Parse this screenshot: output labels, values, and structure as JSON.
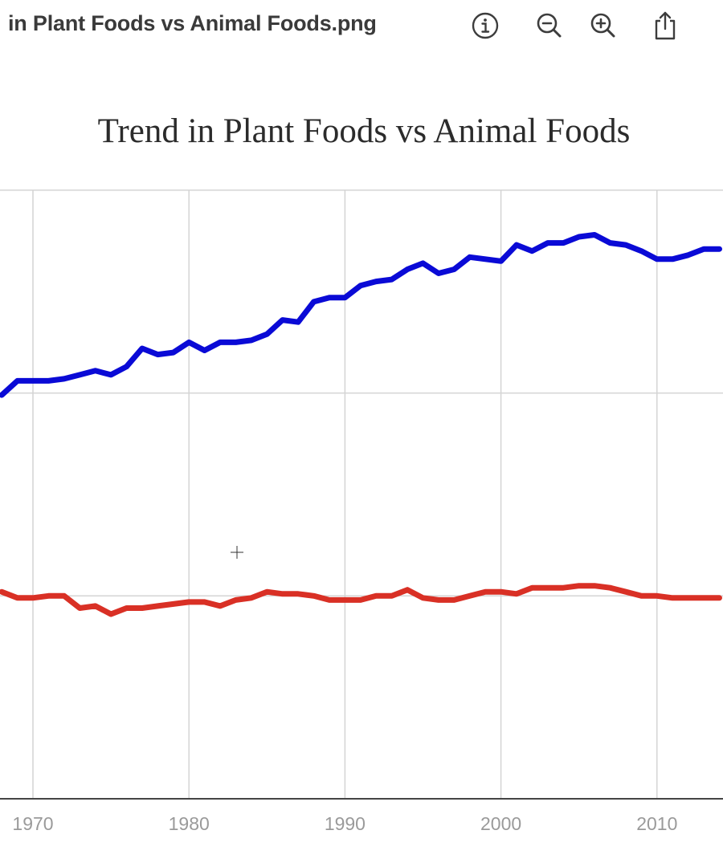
{
  "window": {
    "title": "in Plant Foods vs Animal Foods.png"
  },
  "toolbar": {
    "icons": [
      "info-icon",
      "zoom-out-icon",
      "zoom-in-icon",
      "share-icon"
    ]
  },
  "colors": {
    "plant_series": "#0a0ad6",
    "animal_series": "#d93025",
    "grid": "#d4d4d4",
    "axis": "#444444"
  },
  "chart_data": {
    "type": "line",
    "title": "Trend in Plant Foods vs Animal Foods",
    "xlabel": "",
    "ylabel": "",
    "xlim": [
      1961,
      2014
    ],
    "ylim": [
      0,
      3
    ],
    "x_ticks": [
      1970,
      1980,
      1990,
      2000,
      2010
    ],
    "x_tick_labels": [
      "1970",
      "1980",
      "1990",
      "2000",
      "2010"
    ],
    "y_gridlines": [
      1,
      2,
      3
    ],
    "grid": true,
    "legend": "none",
    "series": [
      {
        "color": "#0a0ad6",
        "x": [
          1968,
          1969,
          1970,
          1971,
          1972,
          1973,
          1974,
          1975,
          1976,
          1977,
          1978,
          1979,
          1980,
          1981,
          1982,
          1983,
          1984,
          1985,
          1986,
          1987,
          1988,
          1989,
          1990,
          1991,
          1992,
          1993,
          1994,
          1995,
          1996,
          1997,
          1998,
          1999,
          2000,
          2001,
          2002,
          2003,
          2004,
          2005,
          2006,
          2007,
          2008,
          2009,
          2010,
          2011,
          2012,
          2013,
          2014
        ],
        "values": [
          1.99,
          2.06,
          2.06,
          2.06,
          2.07,
          2.09,
          2.11,
          2.09,
          2.13,
          2.22,
          2.19,
          2.2,
          2.25,
          2.21,
          2.25,
          2.25,
          2.26,
          2.29,
          2.36,
          2.35,
          2.45,
          2.47,
          2.47,
          2.53,
          2.55,
          2.56,
          2.61,
          2.64,
          2.59,
          2.61,
          2.67,
          2.66,
          2.65,
          2.73,
          2.7,
          2.74,
          2.74,
          2.77,
          2.78,
          2.74,
          2.73,
          2.7,
          2.66,
          2.66,
          2.68,
          2.71,
          2.71
        ]
      },
      {
        "color": "#d93025",
        "x": [
          1968,
          1969,
          1970,
          1971,
          1972,
          1973,
          1974,
          1975,
          1976,
          1977,
          1978,
          1979,
          1980,
          1981,
          1982,
          1983,
          1984,
          1985,
          1986,
          1987,
          1988,
          1989,
          1990,
          1991,
          1992,
          1993,
          1994,
          1995,
          1996,
          1997,
          1998,
          1999,
          2000,
          2001,
          2002,
          2003,
          2004,
          2005,
          2006,
          2007,
          2008,
          2009,
          2010,
          2011,
          2012,
          2013,
          2014
        ],
        "values": [
          1.02,
          0.99,
          0.99,
          1.0,
          1.0,
          0.94,
          0.95,
          0.91,
          0.94,
          0.94,
          0.95,
          0.96,
          0.97,
          0.97,
          0.95,
          0.98,
          0.99,
          1.02,
          1.01,
          1.01,
          1.0,
          0.98,
          0.98,
          0.98,
          1.0,
          1.0,
          1.03,
          0.99,
          0.98,
          0.98,
          1.0,
          1.02,
          1.02,
          1.01,
          1.04,
          1.04,
          1.04,
          1.05,
          1.05,
          1.04,
          1.02,
          1.0,
          1.0,
          0.99,
          0.99,
          0.99,
          0.99
        ]
      }
    ]
  }
}
